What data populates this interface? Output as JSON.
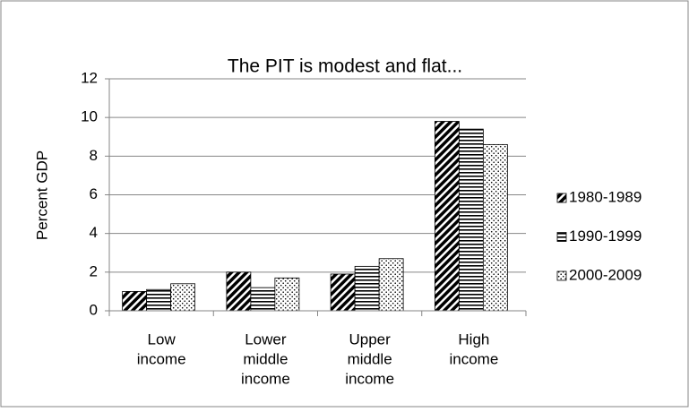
{
  "chart_data": {
    "type": "bar",
    "title": "The PIT is modest and flat...",
    "y_label": "Percent GDP",
    "categories": [
      [
        "Low",
        "income"
      ],
      [
        "Lower",
        "middle",
        "income"
      ],
      [
        "Upper",
        "middle",
        "income"
      ],
      [
        "High",
        "income"
      ]
    ],
    "series": [
      {
        "name": "1980-1989",
        "color": "#000000",
        "pattern": "diagonal",
        "values": [
          1.0,
          2.0,
          1.9,
          9.8
        ]
      },
      {
        "name": "1990-1999",
        "color": "#000000",
        "pattern": "horizontal",
        "values": [
          1.1,
          1.2,
          2.3,
          9.4
        ]
      },
      {
        "name": "2000-2009",
        "color": "#000000",
        "pattern": "dotted",
        "values": [
          1.4,
          1.7,
          2.7,
          8.6
        ]
      }
    ],
    "ylim": [
      0,
      12
    ],
    "yticks": [
      0,
      2,
      4,
      6,
      8,
      10,
      12
    ],
    "grid": true,
    "legend": "right"
  }
}
